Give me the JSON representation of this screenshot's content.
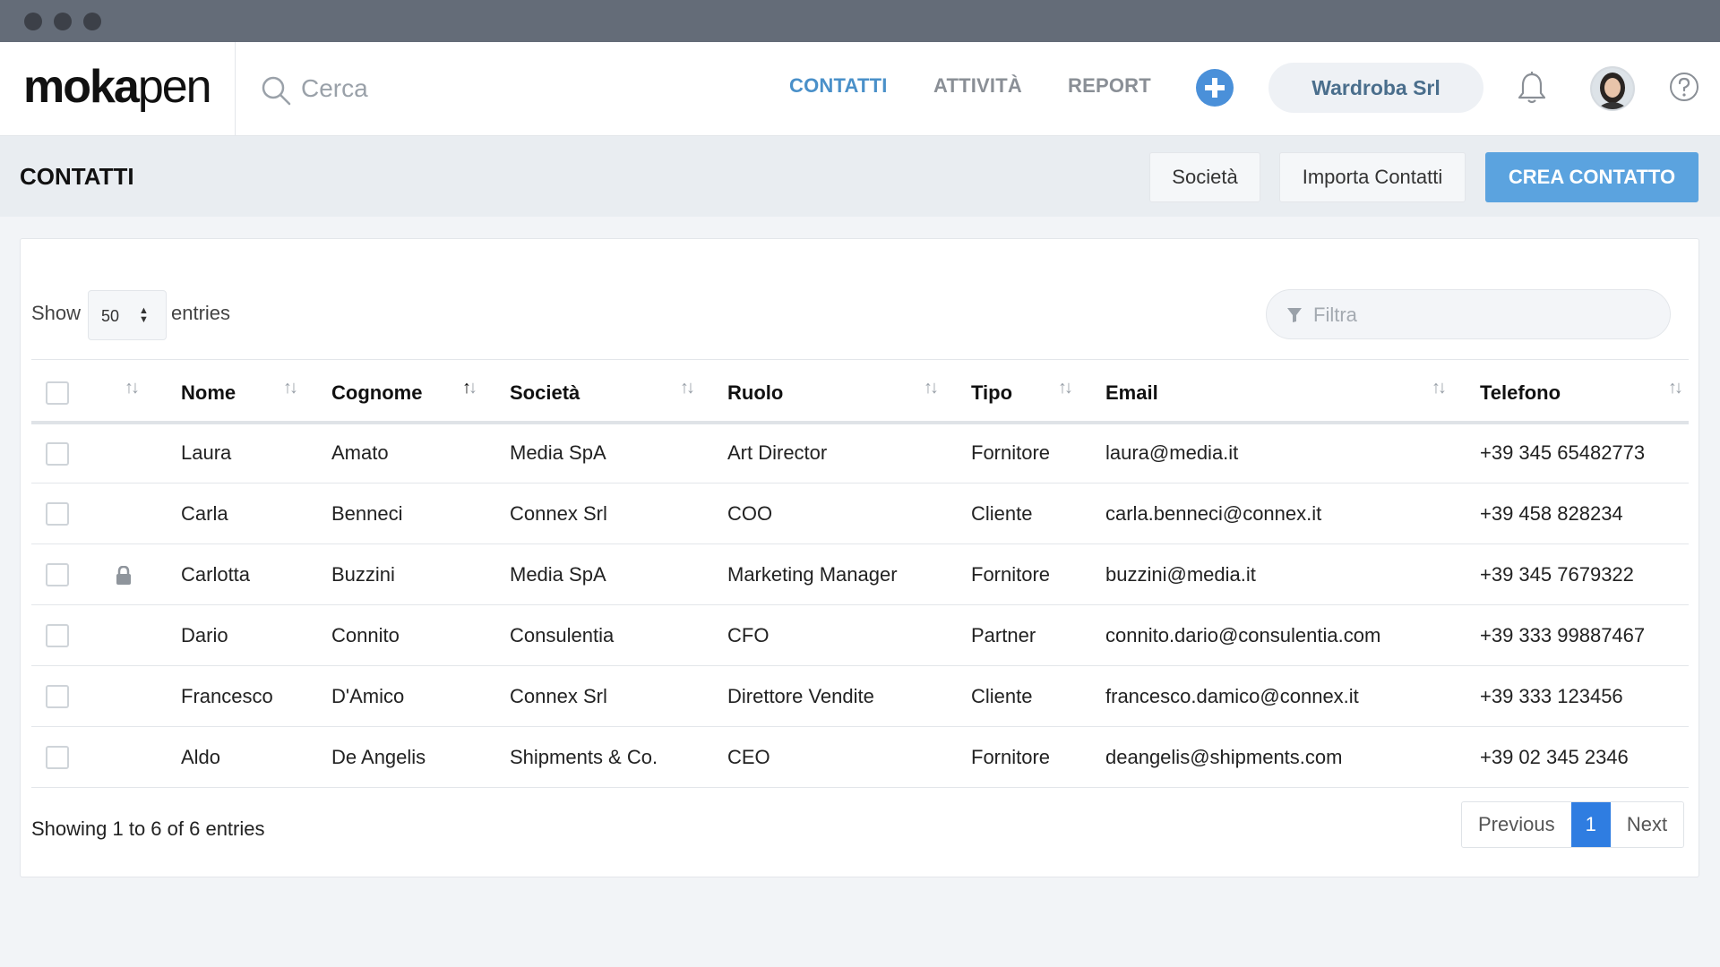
{
  "app": {
    "brand_bold": "moka",
    "brand_light": "pen",
    "search_placeholder": "Cerca",
    "nav": [
      {
        "label": "CONTATTI",
        "active": true
      },
      {
        "label": "ATTIVITÀ",
        "active": false
      },
      {
        "label": "REPORT",
        "active": false
      }
    ],
    "company": "Wardroba Srl",
    "accent_color": "#4a90d9"
  },
  "header": {
    "title": "CONTATTI",
    "btn_company": "Società",
    "btn_import": "Importa Contatti",
    "btn_create": "CREA CONTATTO"
  },
  "table_controls": {
    "show_label": "Show",
    "entries_value": "50",
    "entries_label": "entries",
    "filter_placeholder": "Filtra"
  },
  "columns": [
    "Nome",
    "Cognome",
    "Società",
    "Ruolo",
    "Tipo",
    "Email",
    "Telefono"
  ],
  "rows": [
    {
      "locked": false,
      "nome": "Laura",
      "cognome": "Amato",
      "societa": "Media SpA",
      "ruolo": "Art Director",
      "tipo": "Fornitore",
      "email": "laura@media.it",
      "telefono": "+39 345 65482773"
    },
    {
      "locked": false,
      "nome": "Carla",
      "cognome": "Benneci",
      "societa": "Connex Srl",
      "ruolo": "COO",
      "tipo": "Cliente",
      "email": "carla.benneci@connex.it",
      "telefono": "+39 458 828234"
    },
    {
      "locked": true,
      "nome": "Carlotta",
      "cognome": "Buzzini",
      "societa": "Media SpA",
      "ruolo": "Marketing Manager",
      "tipo": "Fornitore",
      "email": "buzzini@media.it",
      "telefono": "+39 345 7679322"
    },
    {
      "locked": false,
      "nome": "Dario",
      "cognome": "Connito",
      "societa": "Consulentia",
      "ruolo": "CFO",
      "tipo": "Partner",
      "email": "connito.dario@consulentia.com",
      "telefono": "+39 333 99887467"
    },
    {
      "locked": false,
      "nome": "Francesco",
      "cognome": "D'Amico",
      "societa": "Connex Srl",
      "ruolo": "Direttore Vendite",
      "tipo": "Cliente",
      "email": "francesco.damico@connex.it",
      "telefono": "+39 333 123456"
    },
    {
      "locked": false,
      "nome": "Aldo",
      "cognome": "De Angelis",
      "societa": "Shipments & Co.",
      "ruolo": "CEO",
      "tipo": "Fornitore",
      "email": "deangelis@shipments.com",
      "telefono": "+39 02 345 2346"
    }
  ],
  "footer": {
    "showing": "Showing 1 to 6 of 6 entries",
    "prev": "Previous",
    "page": "1",
    "next": "Next"
  }
}
